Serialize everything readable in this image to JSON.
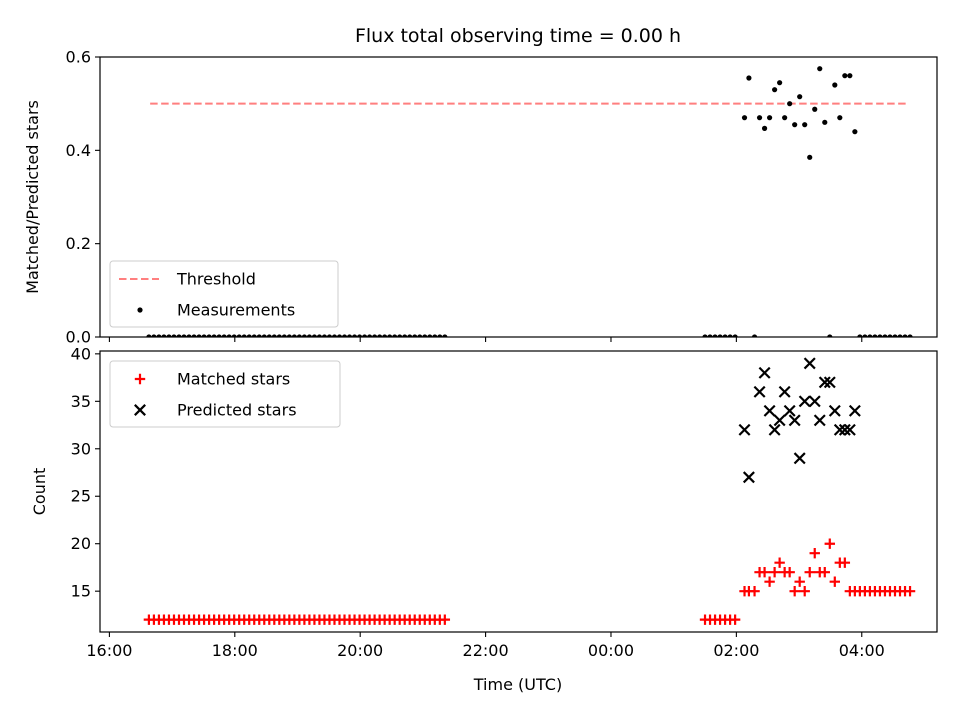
{
  "chart_data": {
    "title": "Flux total observing time = 0.00 h",
    "xlabel": "Time (UTC)",
    "x_unit": "hours since 16:00 UTC",
    "xlim": [
      -0.15,
      13.2
    ],
    "xticks": [
      {
        "value": 0,
        "label": "16:00"
      },
      {
        "value": 2,
        "label": "18:00"
      },
      {
        "value": 4,
        "label": "20:00"
      },
      {
        "value": 6,
        "label": "22:00"
      },
      {
        "value": 8,
        "label": "00:00"
      },
      {
        "value": 10,
        "label": "02:00"
      },
      {
        "value": 12,
        "label": "04:00"
      }
    ],
    "panels": [
      {
        "type": "scatter",
        "ylabel": "Matched/Predicted stars",
        "ylim": [
          0,
          0.6
        ],
        "yticks": [
          {
            "value": 0,
            "label": "0.0"
          },
          {
            "value": 0.2,
            "label": "0.2"
          },
          {
            "value": 0.4,
            "label": "0.4"
          },
          {
            "value": 0.6,
            "label": "0.6"
          }
        ],
        "legend_position": "lower-left",
        "series": [
          {
            "name": "Threshold",
            "kind": "dashed-line",
            "color": "#ff7f7f",
            "x": [
              0.65,
              12.7
            ],
            "y": [
              0.5,
              0.5
            ]
          },
          {
            "name": "Measurements",
            "kind": "dot",
            "color": "#000000",
            "x": [
              0.63,
              0.71,
              0.79,
              0.87,
              0.95,
              1.03,
              1.11,
              1.19,
              1.27,
              1.35,
              1.43,
              1.51,
              1.59,
              1.67,
              1.75,
              1.83,
              1.91,
              1.99,
              2.07,
              2.15,
              2.23,
              2.31,
              2.39,
              2.47,
              2.55,
              2.63,
              2.71,
              2.79,
              2.87,
              2.95,
              3.03,
              3.11,
              3.19,
              3.27,
              3.35,
              3.43,
              3.51,
              3.59,
              3.67,
              3.75,
              3.83,
              3.91,
              3.99,
              4.07,
              4.15,
              4.23,
              4.31,
              4.39,
              4.47,
              4.55,
              4.63,
              4.71,
              4.79,
              4.87,
              4.95,
              5.03,
              5.11,
              5.19,
              5.27,
              5.35,
              9.5,
              9.58,
              9.66,
              9.74,
              9.82,
              9.9,
              9.98,
              10.13,
              10.2,
              10.29,
              10.37,
              10.45,
              10.53,
              10.61,
              10.69,
              10.77,
              10.85,
              10.93,
              11.01,
              11.09,
              11.17,
              11.25,
              11.33,
              11.41,
              11.49,
              11.57,
              11.65,
              11.73,
              11.81,
              11.89,
              11.97,
              12.05,
              12.13,
              12.21,
              12.29,
              12.37,
              12.45,
              12.53,
              12.61,
              12.69,
              12.77
            ],
            "y": [
              0,
              0,
              0,
              0,
              0,
              0,
              0,
              0,
              0,
              0,
              0,
              0,
              0,
              0,
              0,
              0,
              0,
              0,
              0,
              0,
              0,
              0,
              0,
              0,
              0,
              0,
              0,
              0,
              0,
              0,
              0,
              0,
              0,
              0,
              0,
              0,
              0,
              0,
              0,
              0,
              0,
              0,
              0,
              0,
              0,
              0,
              0,
              0,
              0,
              0,
              0,
              0,
              0,
              0,
              0,
              0,
              0,
              0,
              0,
              0,
              0,
              0,
              0,
              0,
              0,
              0,
              0,
              0.47,
              0.555,
              0,
              0.47,
              0.447,
              0.47,
              0.53,
              0.545,
              0.47,
              0.5,
              0.455,
              0.515,
              0.455,
              0.385,
              0.488,
              0.575,
              0.46,
              0,
              0.54,
              0.47,
              0.56,
              0.56,
              0.44,
              0,
              0,
              0,
              0,
              0,
              0,
              0,
              0,
              0,
              0,
              0
            ]
          }
        ]
      },
      {
        "type": "scatter",
        "ylabel": "Count",
        "ylim": [
          10.7,
          40.3
        ],
        "yticks": [
          {
            "value": 15,
            "label": "15"
          },
          {
            "value": 20,
            "label": "20"
          },
          {
            "value": 25,
            "label": "25"
          },
          {
            "value": 30,
            "label": "30"
          },
          {
            "value": 35,
            "label": "35"
          },
          {
            "value": 40,
            "label": "40"
          }
        ],
        "legend_position": "upper-left",
        "series": [
          {
            "name": "Matched stars",
            "kind": "plus",
            "color": "#ff0000",
            "x": [
              0.63,
              0.71,
              0.79,
              0.87,
              0.95,
              1.03,
              1.11,
              1.19,
              1.27,
              1.35,
              1.43,
              1.51,
              1.59,
              1.67,
              1.75,
              1.83,
              1.91,
              1.99,
              2.07,
              2.15,
              2.23,
              2.31,
              2.39,
              2.47,
              2.55,
              2.63,
              2.71,
              2.79,
              2.87,
              2.95,
              3.03,
              3.11,
              3.19,
              3.27,
              3.35,
              3.43,
              3.51,
              3.59,
              3.67,
              3.75,
              3.83,
              3.91,
              3.99,
              4.07,
              4.15,
              4.23,
              4.31,
              4.39,
              4.47,
              4.55,
              4.63,
              4.71,
              4.79,
              4.87,
              4.95,
              5.03,
              5.11,
              5.19,
              5.27,
              5.35,
              9.5,
              9.58,
              9.66,
              9.74,
              9.82,
              9.9,
              9.98,
              10.13,
              10.2,
              10.29,
              10.37,
              10.45,
              10.53,
              10.61,
              10.69,
              10.77,
              10.85,
              10.93,
              11.01,
              11.09,
              11.17,
              11.25,
              11.33,
              11.41,
              11.49,
              11.57,
              11.65,
              11.73,
              11.81,
              11.89,
              11.97,
              12.05,
              12.13,
              12.21,
              12.29,
              12.37,
              12.45,
              12.53,
              12.61,
              12.69,
              12.77
            ],
            "y": [
              12,
              12,
              12,
              12,
              12,
              12,
              12,
              12,
              12,
              12,
              12,
              12,
              12,
              12,
              12,
              12,
              12,
              12,
              12,
              12,
              12,
              12,
              12,
              12,
              12,
              12,
              12,
              12,
              12,
              12,
              12,
              12,
              12,
              12,
              12,
              12,
              12,
              12,
              12,
              12,
              12,
              12,
              12,
              12,
              12,
              12,
              12,
              12,
              12,
              12,
              12,
              12,
              12,
              12,
              12,
              12,
              12,
              12,
              12,
              12,
              12,
              12,
              12,
              12,
              12,
              12,
              12,
              15,
              15,
              15,
              17,
              17,
              16,
              17,
              18,
              17,
              17,
              15,
              16,
              15,
              17,
              19,
              17,
              17,
              20,
              16,
              18,
              18,
              15,
              15,
              15,
              15,
              15,
              15,
              15,
              15,
              15,
              15,
              15,
              15,
              15
            ]
          },
          {
            "name": "Predicted stars",
            "kind": "x",
            "color": "#000000",
            "x": [
              10.13,
              10.2,
              10.37,
              10.45,
              10.53,
              10.61,
              10.69,
              10.77,
              10.85,
              10.93,
              11.01,
              11.09,
              11.17,
              11.25,
              11.33,
              11.41,
              11.49,
              11.57,
              11.65,
              11.73,
              11.81,
              11.89
            ],
            "y": [
              32,
              27,
              36,
              38,
              34,
              32,
              33,
              36,
              34,
              33,
              29,
              35,
              39,
              35,
              33,
              37,
              37,
              34,
              32,
              32,
              32,
              34
            ]
          }
        ]
      }
    ]
  }
}
